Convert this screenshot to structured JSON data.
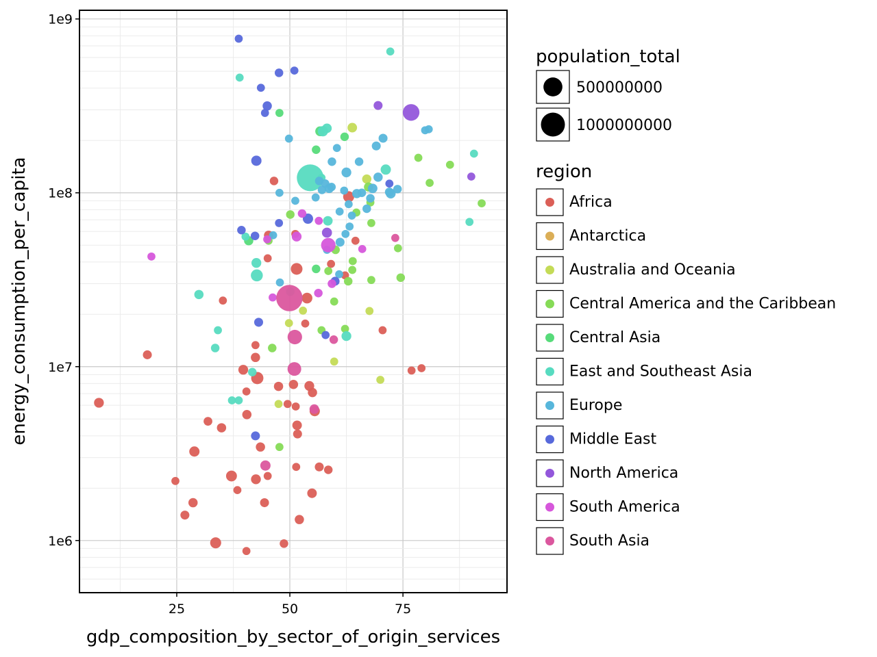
{
  "chart_data": {
    "type": "scatter",
    "title": "",
    "xlabel": "gdp_composition_by_sector_of_origin_services",
    "ylabel": "energy_consumption_per_capita",
    "xlim": [
      3.5,
      98
    ],
    "ylim_log10": [
      5.7,
      9.05
    ],
    "yscale": "log",
    "x_ticks": [
      25,
      50,
      75
    ],
    "x_tick_labels": [
      "25",
      "50",
      "75"
    ],
    "y_ticks": [
      1000000,
      10000000,
      100000000,
      1000000000
    ],
    "y_tick_labels": [
      "1e6",
      "1e7",
      "1e8",
      "1e9"
    ],
    "grid": true,
    "legend_position": "right",
    "size_legend": {
      "title": "population_total",
      "entries": [
        {
          "label": "500000000",
          "value": 500000000
        },
        {
          "label": "1000000000",
          "value": 1000000000
        }
      ]
    },
    "color_legend": {
      "title": "region",
      "entries": [
        {
          "label": "Africa",
          "color": "#db5f57"
        },
        {
          "label": "Antarctica",
          "color": "#dbae57"
        },
        {
          "label": "Australia and Oceania",
          "color": "#c4db57"
        },
        {
          "label": "Central America and the Caribbean",
          "color": "#86db57"
        },
        {
          "label": "Central Asia",
          "color": "#57db7a"
        },
        {
          "label": "East and Southeast Asia",
          "color": "#57dbc0"
        },
        {
          "label": "Europe",
          "color": "#57b6db"
        },
        {
          "label": "Middle East",
          "color": "#5769db"
        },
        {
          "label": "North America",
          "color": "#9357db"
        },
        {
          "label": "South America",
          "color": "#d657db"
        },
        {
          "label": "South Asia",
          "color": "#db579e"
        }
      ]
    },
    "series": [
      {
        "name": "Africa",
        "points": [
          [
            7.8,
            6200000,
            30000000
          ],
          [
            18.5,
            11700000,
            15000000
          ],
          [
            24.7,
            2200000,
            5000000
          ],
          [
            26.8,
            1400000,
            15000000
          ],
          [
            28.6,
            1650000,
            20000000
          ],
          [
            28.9,
            3250000,
            40000000
          ],
          [
            31.9,
            4850000,
            12000000
          ],
          [
            33.6,
            970000,
            60000000
          ],
          [
            34.9,
            4450000,
            20000000
          ],
          [
            35.2,
            24000000,
            5000000
          ],
          [
            37.1,
            2350000,
            55000000
          ],
          [
            38.4,
            1950000,
            5000000
          ],
          [
            39.7,
            9600000,
            30000000
          ],
          [
            40.4,
            870000,
            5000000
          ],
          [
            40.4,
            7200000,
            5000000
          ],
          [
            40.5,
            5300000,
            20000000
          ],
          [
            42.4,
            13300000,
            5000000
          ],
          [
            42.4,
            11300000,
            20000000
          ],
          [
            42.5,
            2250000,
            30000000
          ],
          [
            42.8,
            8600000,
            100000000
          ],
          [
            43.5,
            3450000,
            20000000
          ],
          [
            44.4,
            1650000,
            15000000
          ],
          [
            45.1,
            42000000,
            5000000
          ],
          [
            45.1,
            2350000,
            5000000
          ],
          [
            45.3,
            57000000,
            20000000
          ],
          [
            46.5,
            117000000,
            10000000
          ],
          [
            47.5,
            7700000,
            20000000
          ],
          [
            48.7,
            960000,
            10000000
          ],
          [
            49.5,
            6100000,
            5000000
          ],
          [
            50.8,
            7900000,
            20000000
          ],
          [
            51.2,
            58000000,
            5000000
          ],
          [
            51.3,
            5900000,
            5000000
          ],
          [
            51.4,
            2650000,
            5000000
          ],
          [
            51.5,
            36500000,
            80000000
          ],
          [
            51.6,
            4600000,
            25000000
          ],
          [
            51.7,
            4100000,
            15000000
          ],
          [
            52.1,
            1320000,
            20000000
          ],
          [
            53.4,
            17700000,
            5000000
          ],
          [
            53.8,
            24800000,
            50000000
          ],
          [
            54.3,
            7750000,
            30000000
          ],
          [
            54.9,
            1870000,
            25000000
          ],
          [
            55.0,
            7100000,
            20000000
          ],
          [
            55.5,
            5550000,
            40000000
          ],
          [
            56.5,
            2650000,
            15000000
          ],
          [
            58.5,
            2550000,
            10000000
          ],
          [
            59.1,
            39000000,
            5000000
          ],
          [
            62.2,
            33500000,
            5000000
          ],
          [
            63.0,
            95000000,
            60000000
          ],
          [
            64.5,
            53000000,
            5000000
          ],
          [
            70.5,
            16200000,
            5000000
          ],
          [
            76.9,
            9500000,
            5000000
          ],
          [
            79.1,
            9800000,
            5000000
          ]
        ]
      },
      {
        "name": "Australia and Oceania",
        "points": [
          [
            47.5,
            6100000,
            5000000
          ],
          [
            49.8,
            17800000,
            5000000
          ],
          [
            52.9,
            21000000,
            5000000
          ],
          [
            59.8,
            10700000,
            5000000
          ],
          [
            63.8,
            237000000,
            25000000
          ],
          [
            67.0,
            120000000,
            20000000
          ],
          [
            67.6,
            20900000,
            5000000
          ],
          [
            70.0,
            8400000,
            5000000
          ]
        ]
      },
      {
        "name": "Central America and the Caribbean",
        "points": [
          [
            45.3,
            53000000,
            5000000
          ],
          [
            46.1,
            12800000,
            10000000
          ],
          [
            47.7,
            3450000,
            5000000
          ],
          [
            50.1,
            75000000,
            10000000
          ],
          [
            57.0,
            16200000,
            5000000
          ],
          [
            58.5,
            35500000,
            5000000
          ],
          [
            59.8,
            23700000,
            5000000
          ],
          [
            60.1,
            47000000,
            10000000
          ],
          [
            62.2,
            16500000,
            5000000
          ],
          [
            62.9,
            31000000,
            10000000
          ],
          [
            63.8,
            36000000,
            5000000
          ],
          [
            63.9,
            40500000,
            5000000
          ],
          [
            64.7,
            77000000,
            5000000
          ],
          [
            67.4,
            108000000,
            20000000
          ],
          [
            67.8,
            88000000,
            5000000
          ],
          [
            68.0,
            31500000,
            5000000
          ],
          [
            68.0,
            67000000,
            5000000
          ],
          [
            73.9,
            48000000,
            5000000
          ],
          [
            74.5,
            32500000,
            10000000
          ],
          [
            78.4,
            159000000,
            5000000
          ],
          [
            80.9,
            114000000,
            5000000
          ],
          [
            85.4,
            145000000,
            5000000
          ],
          [
            92.4,
            87000000,
            5000000
          ]
        ]
      },
      {
        "name": "Central Asia",
        "points": [
          [
            40.9,
            53000000,
            20000000
          ],
          [
            47.7,
            288000000,
            5000000
          ],
          [
            55.8,
            36500000,
            10000000
          ],
          [
            55.8,
            177000000,
            10000000
          ],
          [
            56.7,
            226000000,
            30000000
          ],
          [
            62.1,
            210000000,
            10000000
          ]
        ]
      },
      {
        "name": "East and Southeast Asia",
        "points": [
          [
            29.9,
            26000000,
            20000000
          ],
          [
            33.5,
            12800000,
            10000000
          ],
          [
            34.1,
            16200000,
            5000000
          ],
          [
            37.2,
            6400000,
            5000000
          ],
          [
            38.7,
            6400000,
            5000000
          ],
          [
            38.9,
            460000000,
            5000000
          ],
          [
            40.2,
            56000000,
            5000000
          ],
          [
            41.7,
            9300000,
            10000000
          ],
          [
            42.6,
            39500000,
            30000000
          ],
          [
            42.7,
            33500000,
            90000000
          ],
          [
            50.1,
            27000000,
            10000000
          ],
          [
            54.5,
            122000000,
            1350000000
          ],
          [
            57.0,
            122000000,
            5000000
          ],
          [
            57.3,
            226000000,
            40000000
          ],
          [
            58.2,
            235000000,
            25000000
          ],
          [
            58.4,
            69000000,
            25000000
          ],
          [
            62.5,
            15000000,
            30000000
          ],
          [
            71.2,
            136000000,
            40000000
          ],
          [
            72.2,
            650000000,
            5000000
          ],
          [
            90.7,
            168000000,
            5000000
          ],
          [
            89.7,
            68000000,
            5000000
          ]
        ]
      },
      {
        "name": "Europe",
        "points": [
          [
            46.3,
            57000000,
            5000000
          ],
          [
            47.7,
            100000000,
            5000000
          ],
          [
            47.8,
            30500000,
            5000000
          ],
          [
            49.8,
            205000000,
            5000000
          ],
          [
            51.2,
            90000000,
            5000000
          ],
          [
            55.7,
            94000000,
            5000000
          ],
          [
            56.5,
            117000000,
            10000000
          ],
          [
            57.1,
            104000000,
            10000000
          ],
          [
            57.8,
            113000000,
            10000000
          ],
          [
            58.2,
            47000000,
            5000000
          ],
          [
            58.7,
            106000000,
            20000000
          ],
          [
            59.2,
            108000000,
            10000000
          ],
          [
            59.3,
            151000000,
            10000000
          ],
          [
            60.4,
            181000000,
            5000000
          ],
          [
            60.9,
            34000000,
            5000000
          ],
          [
            61.0,
            78000000,
            5000000
          ],
          [
            61.1,
            52000000,
            15000000
          ],
          [
            62.0,
            103000000,
            5000000
          ],
          [
            62.3,
            58000000,
            5000000
          ],
          [
            62.5,
            131000000,
            30000000
          ],
          [
            63.0,
            86000000,
            5000000
          ],
          [
            63.2,
            64000000,
            5000000
          ],
          [
            63.7,
            74000000,
            5000000
          ],
          [
            64.8,
            99000000,
            20000000
          ],
          [
            65.3,
            151000000,
            10000000
          ],
          [
            65.9,
            100000000,
            10000000
          ],
          [
            67.0,
            81000000,
            10000000
          ],
          [
            67.8,
            93000000,
            10000000
          ],
          [
            68.3,
            106000000,
            25000000
          ],
          [
            69.1,
            186000000,
            15000000
          ],
          [
            69.5,
            123000000,
            20000000
          ],
          [
            70.6,
            206000000,
            15000000
          ],
          [
            72.0,
            101000000,
            15000000
          ],
          [
            72.3,
            99000000,
            30000000
          ],
          [
            73.8,
            105000000,
            10000000
          ],
          [
            79.9,
            229000000,
            5000000
          ],
          [
            80.7,
            232000000,
            5000000
          ]
        ]
      },
      {
        "name": "Middle East",
        "points": [
          [
            38.7,
            770000000,
            5000000
          ],
          [
            39.3,
            61000000,
            10000000
          ],
          [
            42.3,
            56500000,
            10000000
          ],
          [
            42.6,
            153000000,
            40000000
          ],
          [
            42.4,
            4000000,
            15000000
          ],
          [
            43.1,
            18000000,
            15000000
          ],
          [
            43.6,
            402000000,
            5000000
          ],
          [
            44.5,
            288000000,
            5000000
          ],
          [
            45.0,
            316000000,
            20000000
          ],
          [
            47.6,
            67000000,
            5000000
          ],
          [
            47.6,
            490000000,
            10000000
          ],
          [
            51.0,
            505000000,
            5000000
          ],
          [
            54.0,
            71000000,
            40000000
          ],
          [
            57.9,
            15200000,
            5000000
          ],
          [
            60.0,
            31000000,
            15000000
          ],
          [
            72.0,
            113000000,
            5000000
          ]
        ]
      },
      {
        "name": "North America",
        "points": [
          [
            58.2,
            59000000,
            35000000
          ],
          [
            69.5,
            318000000,
            15000000
          ],
          [
            76.8,
            290000000,
            330000000
          ],
          [
            90.1,
            124000000,
            5000000
          ]
        ]
      },
      {
        "name": "South America",
        "points": [
          [
            19.4,
            43000000,
            5000000
          ],
          [
            45.0,
            54000000,
            5000000
          ],
          [
            46.2,
            25000000,
            5000000
          ],
          [
            51.5,
            56000000,
            30000000
          ],
          [
            52.7,
            76000000,
            10000000
          ],
          [
            56.3,
            26500000,
            10000000
          ],
          [
            56.4,
            69000000,
            5000000
          ],
          [
            58.5,
            50000000,
            200000000
          ],
          [
            59.3,
            30000000,
            10000000
          ],
          [
            66.0,
            47500000,
            5000000
          ]
        ]
      },
      {
        "name": "South Asia",
        "points": [
          [
            44.6,
            2700000,
            40000000
          ],
          [
            49.9,
            24800000,
            1300000000
          ],
          [
            51.1,
            14800000,
            200000000
          ],
          [
            51.0,
            9700000,
            160000000
          ],
          [
            55.4,
            5700000,
            25000000
          ],
          [
            59.7,
            14300000,
            10000000
          ],
          [
            73.3,
            55000000,
            5000000
          ]
        ]
      }
    ]
  }
}
